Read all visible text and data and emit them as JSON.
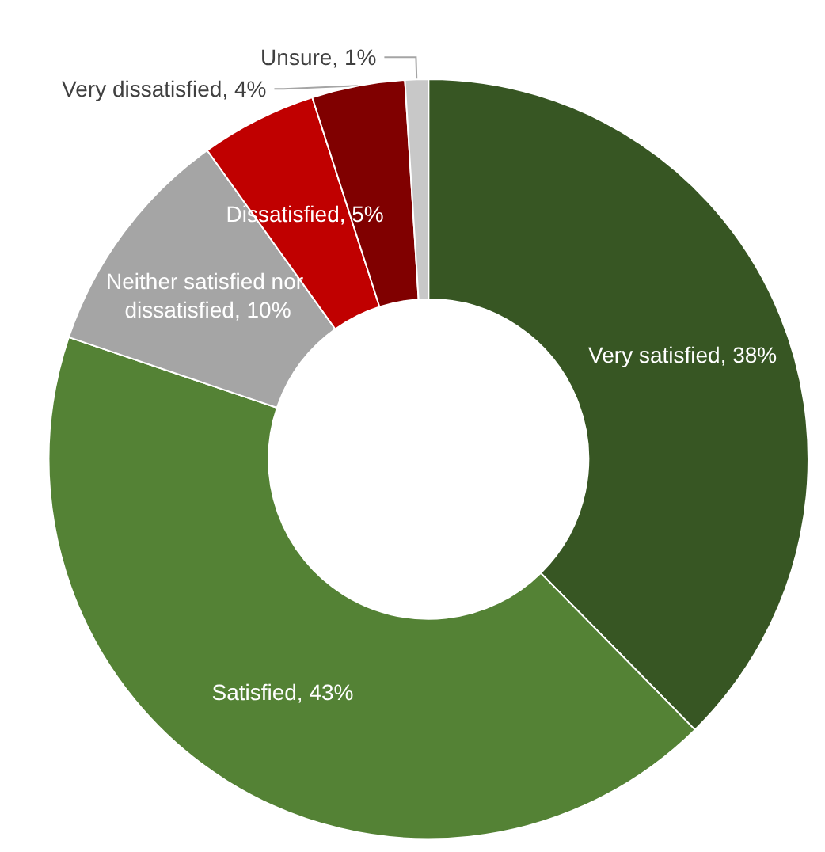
{
  "chart_data": {
    "type": "donut",
    "categories": [
      "Very satisfied",
      "Satisfied",
      "Neither satisfied nor dissatisfied",
      "Dissatisfied",
      "Very dissatisfied",
      "Unsure"
    ],
    "values": [
      38,
      43,
      10,
      5,
      4,
      1
    ],
    "colors": [
      "#375623",
      "#548235",
      "#a5a5a5",
      "#c00000",
      "#800000",
      "#c8c8c8"
    ],
    "value_labels": [
      "38%",
      "43%",
      "10%",
      "5%",
      "4%",
      "1%"
    ]
  }
}
